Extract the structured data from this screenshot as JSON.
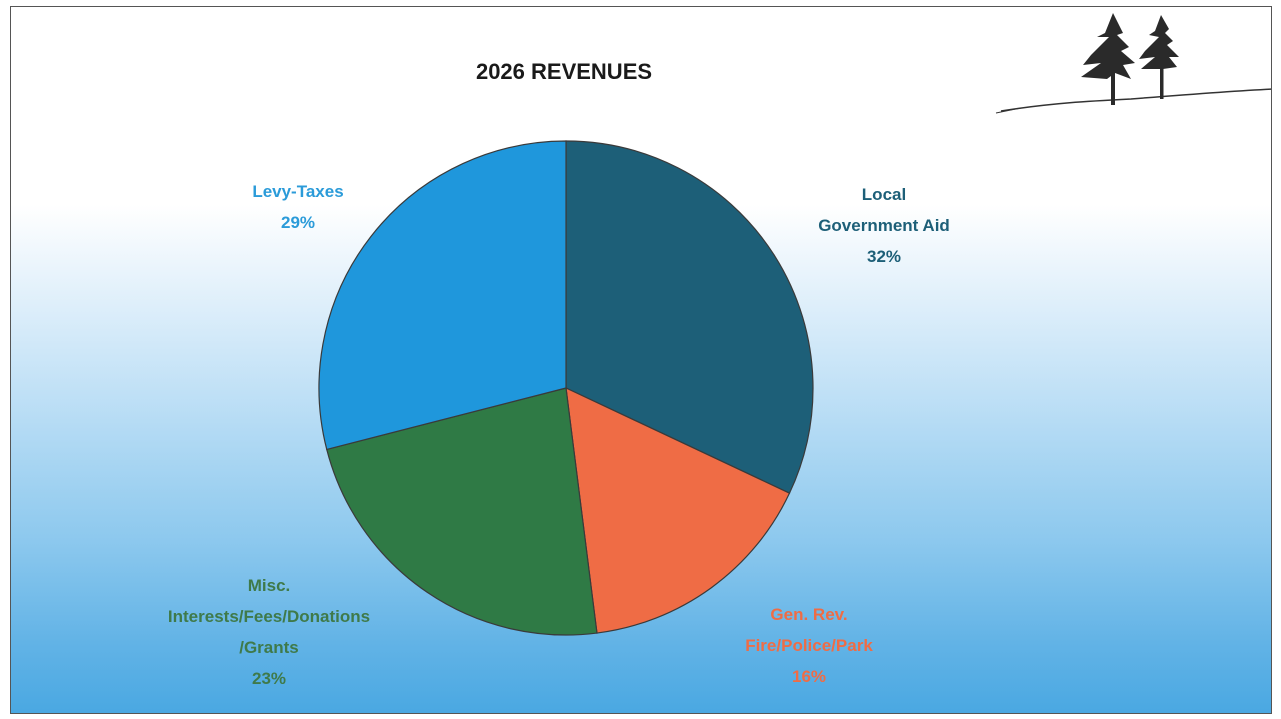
{
  "chart_data": {
    "type": "pie",
    "title": "2026 REVENUES",
    "start_angle_deg": 0,
    "direction": "clockwise",
    "slices": [
      {
        "lines": [
          "Local",
          "Government Aid"
        ],
        "value": 32,
        "value_label": "32%",
        "color": "#1d5f78",
        "label_color": "#1d5f78"
      },
      {
        "lines": [
          "Gen. Rev.",
          "Fire/Police/Park"
        ],
        "value": 16,
        "value_label": "16%",
        "color": "#ef6c45",
        "label_color": "#ef6c45"
      },
      {
        "lines": [
          "Misc.",
          "Interests/Fees/Donations",
          "/Grants"
        ],
        "value": 23,
        "value_label": "23%",
        "color": "#2f7a45",
        "label_color": "#3f7a4a"
      },
      {
        "lines": [
          "Levy-Taxes"
        ],
        "value": 29,
        "value_label": "29%",
        "color": "#1f97dc",
        "label_color": "#2b9bd9"
      }
    ]
  },
  "decoration": {
    "logo": "pine-trees-icon"
  }
}
